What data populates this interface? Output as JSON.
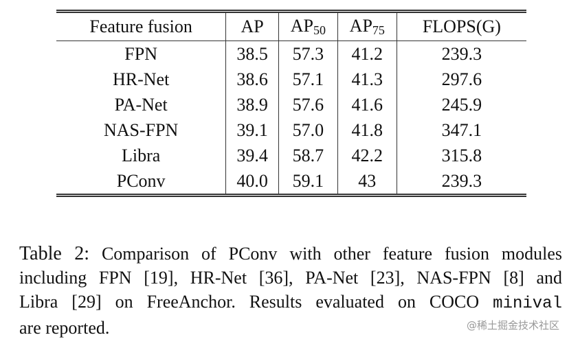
{
  "table": {
    "header": [
      {
        "text": "Feature fusion"
      },
      {
        "text": "AP"
      },
      {
        "text": "AP",
        "sub": "50"
      },
      {
        "text": "AP",
        "sub": "75"
      },
      {
        "text": "FLOPS(G)"
      }
    ],
    "rows": [
      [
        "FPN",
        "38.5",
        "57.3",
        "41.2",
        "239.3"
      ],
      [
        "HR-Net",
        "38.6",
        "57.1",
        "41.3",
        "297.6"
      ],
      [
        "PA-Net",
        "38.9",
        "57.6",
        "41.6",
        "245.9"
      ],
      [
        "NAS-FPN",
        "39.1",
        "57.0",
        "41.8",
        "347.1"
      ],
      [
        "Libra",
        "39.4",
        "58.7",
        "42.2",
        "315.8"
      ],
      [
        "PConv",
        "40.0",
        "59.1",
        "43",
        "239.3"
      ]
    ]
  },
  "caption": {
    "label": "Table 2:",
    "lines": [
      "Comparison of PConv with other feature fusion modules",
      "including FPN [19], HR-Net [36], PA-Net [23], NAS-FPN [8] and",
      "Libra [29] on FreeAnchor. Results evaluated on COCO",
      "are reported."
    ],
    "code": "minival"
  },
  "watermark": "@稀土掘金技术社区"
}
